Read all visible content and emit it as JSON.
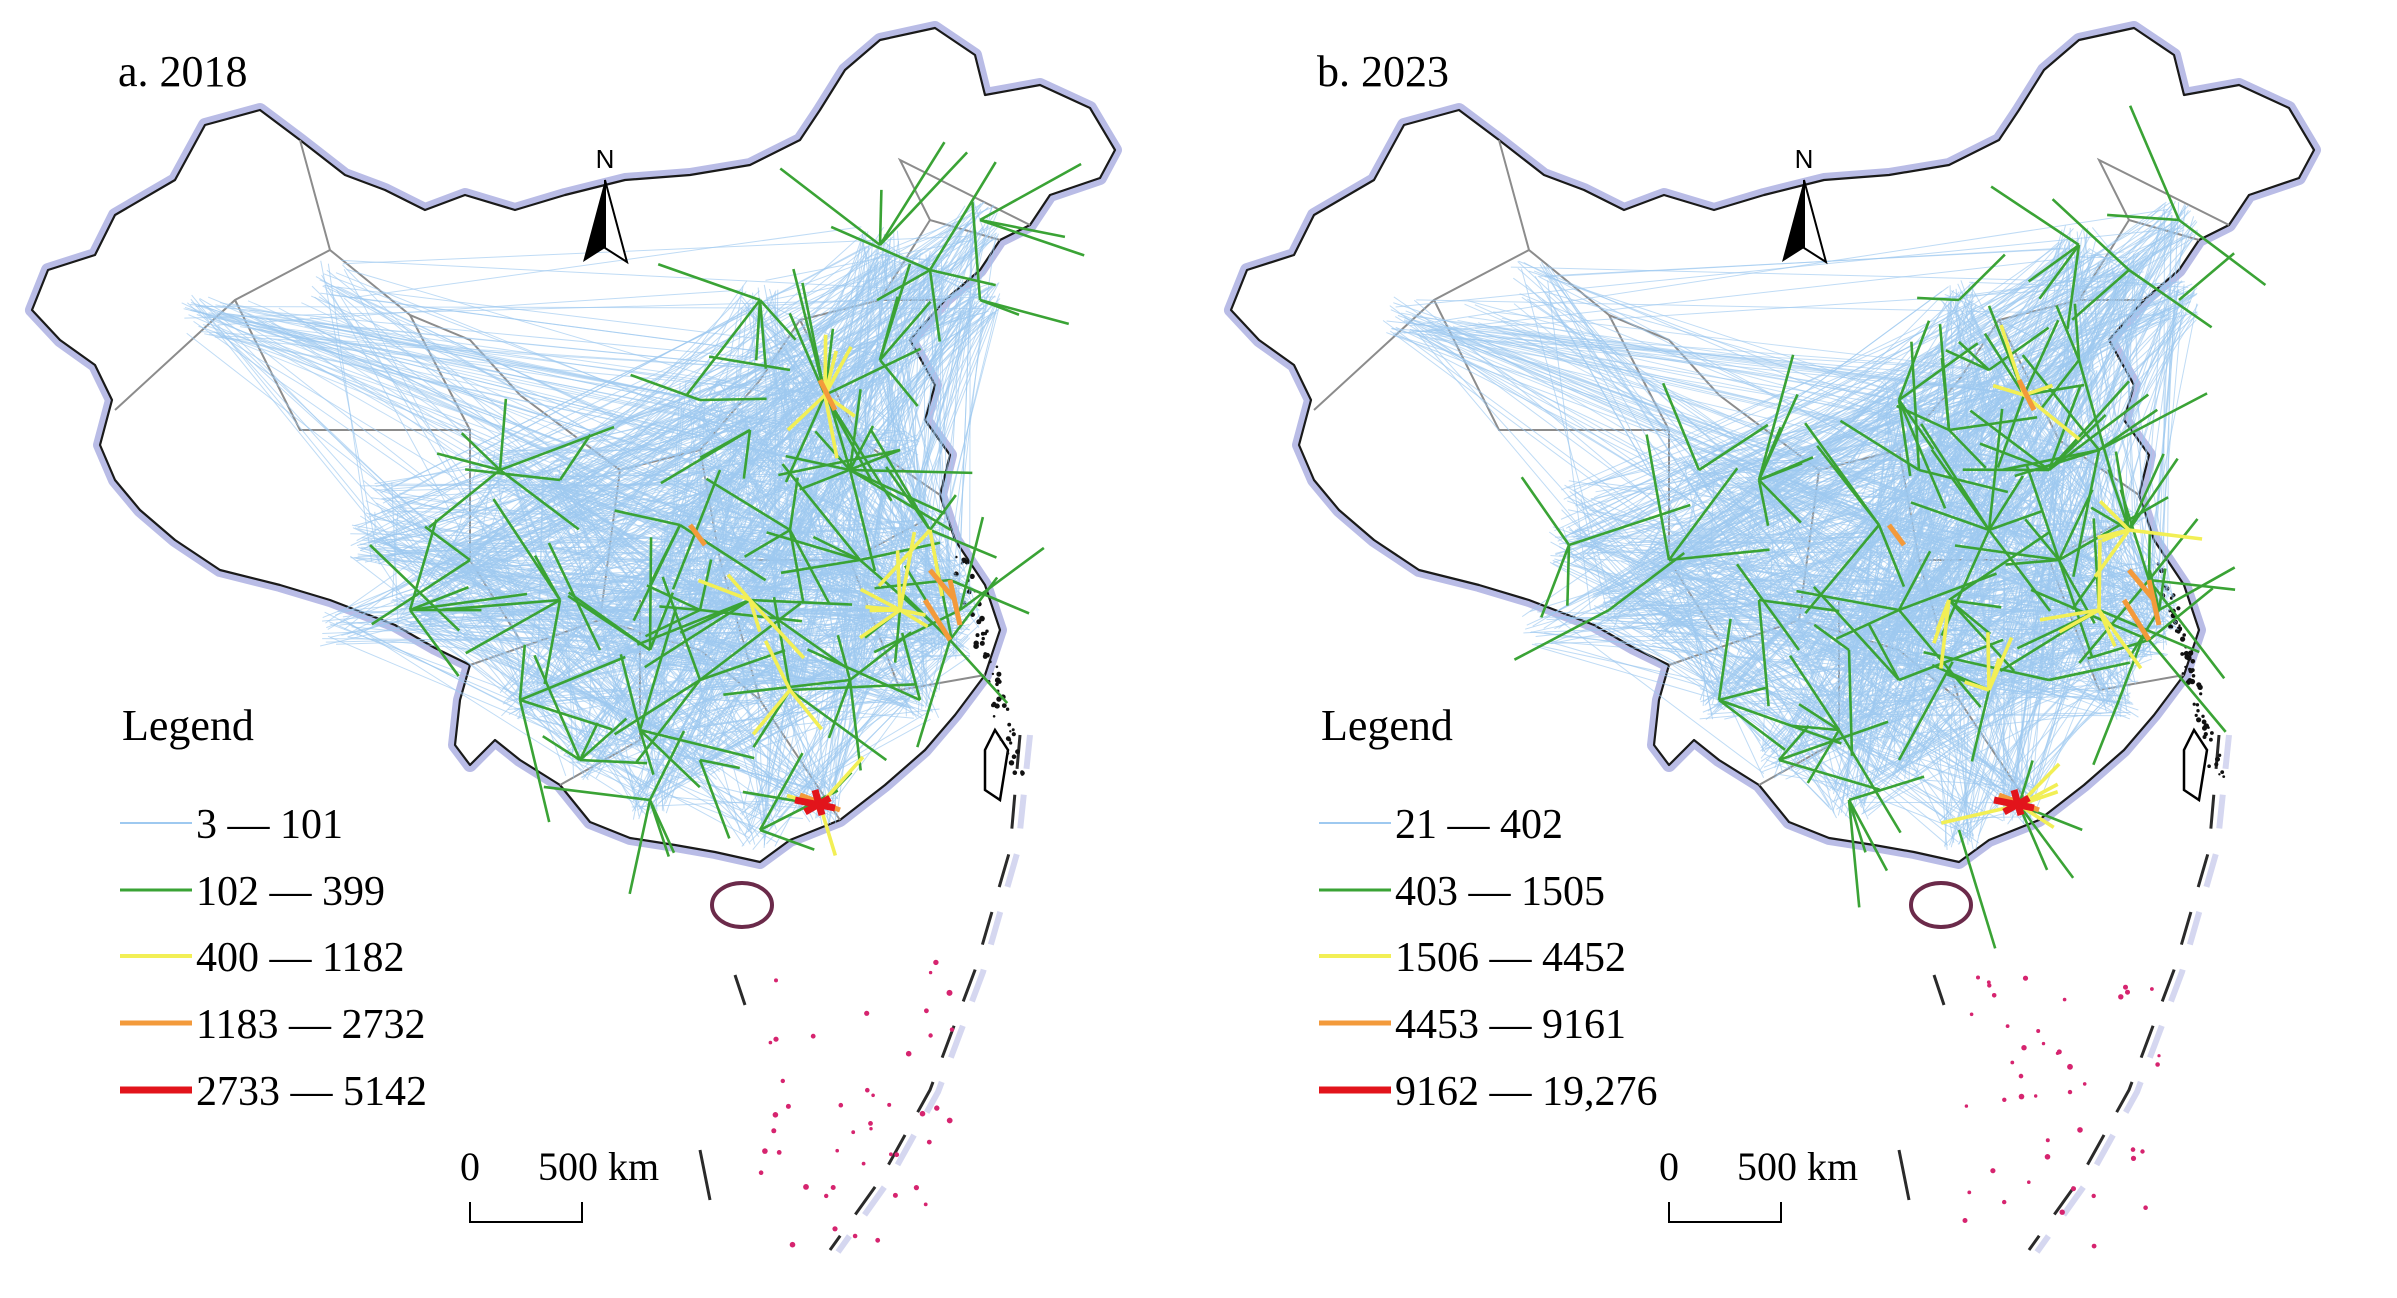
{
  "panels": [
    {
      "title": "a. 2018",
      "legend": {
        "title": "Legend",
        "classes": [
          {
            "label": "3 — 101",
            "color": "#9ec9f0"
          },
          {
            "label": "102 — 399",
            "color": "#3aa335"
          },
          {
            "label": "400 — 1182",
            "color": "#f2ef55"
          },
          {
            "label": "1183 — 2732",
            "color": "#f39a3b"
          },
          {
            "label": "2733 — 5142",
            "color": "#e2141b"
          }
        ]
      },
      "north": "N",
      "scale": {
        "zero": "0",
        "distance": "500 km"
      }
    },
    {
      "title": "b. 2023",
      "legend": {
        "title": "Legend",
        "classes": [
          {
            "label": "21 — 402",
            "color": "#9ec9f0"
          },
          {
            "label": "403 — 1505",
            "color": "#3aa335"
          },
          {
            "label": "1506 — 4452",
            "color": "#f2ef55"
          },
          {
            "label": "4453 — 9161",
            "color": "#f39a3b"
          },
          {
            "label": "9162 — 19,276",
            "color": "#e2141b"
          }
        ]
      },
      "north": "N",
      "scale": {
        "zero": "0",
        "distance": "500 km"
      }
    }
  ],
  "colors": {
    "border_glow": "#b9bce6",
    "province_lines": "#8c8c8c",
    "islands": "#d6246f"
  }
}
